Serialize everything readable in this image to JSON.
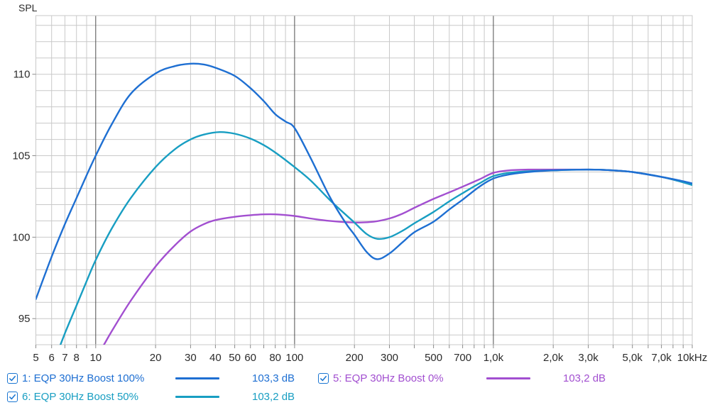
{
  "chart_data": {
    "type": "line",
    "title": "SPL",
    "ylabel": "SPL",
    "x_scale": "log",
    "xlim": [
      5,
      10000
    ],
    "ylim": [
      93.4,
      113.6
    ],
    "grid": "on",
    "y_gridline_step_db": 1,
    "y_tick_labels": [
      {
        "value": 110,
        "label": "110"
      },
      {
        "value": 105,
        "label": "105"
      },
      {
        "value": 100,
        "label": "100"
      },
      {
        "value": 95,
        "label": "95"
      }
    ],
    "x_tick_labels": [
      {
        "f": 5,
        "label": "5"
      },
      {
        "f": 6,
        "label": "6"
      },
      {
        "f": 7,
        "label": "7"
      },
      {
        "f": 8,
        "label": "8"
      },
      {
        "f": 10,
        "label": "10"
      },
      {
        "f": 20,
        "label": "20"
      },
      {
        "f": 30,
        "label": "30"
      },
      {
        "f": 40,
        "label": "40"
      },
      {
        "f": 50,
        "label": "50"
      },
      {
        "f": 60,
        "label": "60"
      },
      {
        "f": 80,
        "label": "80"
      },
      {
        "f": 100,
        "label": "100"
      },
      {
        "f": 200,
        "label": "200"
      },
      {
        "f": 300,
        "label": "300"
      },
      {
        "f": 500,
        "label": "500"
      },
      {
        "f": 700,
        "label": "700"
      },
      {
        "f": 1000,
        "label": "1,0k"
      },
      {
        "f": 2000,
        "label": "2,0k"
      },
      {
        "f": 3000,
        "label": "3,0k"
      },
      {
        "f": 5000,
        "label": "5,0k"
      },
      {
        "f": 7000,
        "label": "7,0k"
      },
      {
        "f": 10000,
        "label": "10kHz"
      }
    ],
    "dark_gridlines_hz": [
      10,
      100,
      1000
    ],
    "series": [
      {
        "name": "5: EQP 30Hz Boost 0%",
        "color": "#A24FD0",
        "points": [
          [
            10,
            92.6
          ],
          [
            11,
            93.4
          ],
          [
            12,
            94.2
          ],
          [
            15,
            96.1
          ],
          [
            20,
            98.2
          ],
          [
            25,
            99.5
          ],
          [
            30,
            100.35
          ],
          [
            35,
            100.8
          ],
          [
            40,
            101.05
          ],
          [
            50,
            101.25
          ],
          [
            60,
            101.35
          ],
          [
            70,
            101.4
          ],
          [
            80,
            101.4
          ],
          [
            100,
            101.3
          ],
          [
            120,
            101.15
          ],
          [
            150,
            101.0
          ],
          [
            200,
            100.9
          ],
          [
            250,
            100.95
          ],
          [
            300,
            101.15
          ],
          [
            350,
            101.45
          ],
          [
            400,
            101.8
          ],
          [
            500,
            102.35
          ],
          [
            600,
            102.75
          ],
          [
            700,
            103.1
          ],
          [
            850,
            103.55
          ],
          [
            1000,
            103.95
          ],
          [
            1200,
            104.1
          ],
          [
            1500,
            104.15
          ],
          [
            2000,
            104.15
          ],
          [
            3000,
            104.15
          ],
          [
            4000,
            104.1
          ],
          [
            5000,
            104.0
          ],
          [
            7000,
            103.7
          ],
          [
            8500,
            103.45
          ],
          [
            10000,
            103.2
          ]
        ]
      },
      {
        "name": "6: EQP 30Hz Boost 50%",
        "color": "#189EC2",
        "points": [
          [
            5,
            89.6
          ],
          [
            6,
            92.0
          ],
          [
            7,
            94.1
          ],
          [
            8,
            95.8
          ],
          [
            9,
            97.3
          ],
          [
            10,
            98.6
          ],
          [
            12,
            100.5
          ],
          [
            15,
            102.4
          ],
          [
            20,
            104.3
          ],
          [
            25,
            105.4
          ],
          [
            30,
            106.0
          ],
          [
            35,
            106.3
          ],
          [
            42,
            106.45
          ],
          [
            50,
            106.35
          ],
          [
            60,
            106.05
          ],
          [
            70,
            105.65
          ],
          [
            80,
            105.2
          ],
          [
            100,
            104.3
          ],
          [
            120,
            103.5
          ],
          [
            150,
            102.3
          ],
          [
            180,
            101.4
          ],
          [
            200,
            100.9
          ],
          [
            230,
            100.2
          ],
          [
            260,
            99.9
          ],
          [
            300,
            100.0
          ],
          [
            350,
            100.4
          ],
          [
            400,
            100.85
          ],
          [
            500,
            101.55
          ],
          [
            600,
            102.2
          ],
          [
            700,
            102.7
          ],
          [
            850,
            103.3
          ],
          [
            1000,
            103.75
          ],
          [
            1200,
            103.95
          ],
          [
            1500,
            104.05
          ],
          [
            2000,
            104.1
          ],
          [
            3000,
            104.15
          ],
          [
            4000,
            104.1
          ],
          [
            5000,
            104.0
          ],
          [
            7000,
            103.7
          ],
          [
            8500,
            103.45
          ],
          [
            10000,
            103.2
          ]
        ]
      },
      {
        "name": "1: EQP 30Hz Boost 100%",
        "color": "#1E6FD2",
        "points": [
          [
            5,
            96.2
          ],
          [
            6,
            98.8
          ],
          [
            7,
            100.8
          ],
          [
            8,
            102.4
          ],
          [
            9,
            103.8
          ],
          [
            10,
            105.0
          ],
          [
            12,
            106.9
          ],
          [
            15,
            108.8
          ],
          [
            20,
            110.05
          ],
          [
            25,
            110.5
          ],
          [
            30,
            110.65
          ],
          [
            35,
            110.6
          ],
          [
            40,
            110.4
          ],
          [
            50,
            109.9
          ],
          [
            60,
            109.15
          ],
          [
            70,
            108.35
          ],
          [
            80,
            107.55
          ],
          [
            90,
            107.1
          ],
          [
            100,
            106.7
          ],
          [
            120,
            104.9
          ],
          [
            150,
            102.5
          ],
          [
            180,
            100.9
          ],
          [
            200,
            100.15
          ],
          [
            230,
            99.1
          ],
          [
            260,
            98.65
          ],
          [
            300,
            99.0
          ],
          [
            350,
            99.7
          ],
          [
            400,
            100.3
          ],
          [
            500,
            100.95
          ],
          [
            600,
            101.7
          ],
          [
            700,
            102.3
          ],
          [
            850,
            103.1
          ],
          [
            1000,
            103.6
          ],
          [
            1200,
            103.85
          ],
          [
            1500,
            104.0
          ],
          [
            2000,
            104.1
          ],
          [
            3000,
            104.15
          ],
          [
            4000,
            104.1
          ],
          [
            5000,
            104.0
          ],
          [
            7000,
            103.7
          ],
          [
            8500,
            103.5
          ],
          [
            10000,
            103.3
          ]
        ]
      }
    ]
  },
  "legend": {
    "items": [
      {
        "checked": true,
        "label": "1: EQP 30Hz Boost 100%",
        "value": "103,3 dB",
        "color": "#1E6FD2"
      },
      {
        "checked": true,
        "label": "6: EQP 30Hz Boost 50%",
        "value": "103,2 dB",
        "color": "#189EC2"
      },
      {
        "checked": true,
        "label": "5: EQP 30Hz Boost 0%",
        "value": "103,2 dB",
        "color": "#A24FD0"
      }
    ]
  },
  "colors": {
    "checkbox": "#1B76D2",
    "grid_minor": "#c9c9c9",
    "grid_major": "#4d4d4d",
    "tick": "#8a8a8a",
    "label_text": "#2b2b2b"
  }
}
